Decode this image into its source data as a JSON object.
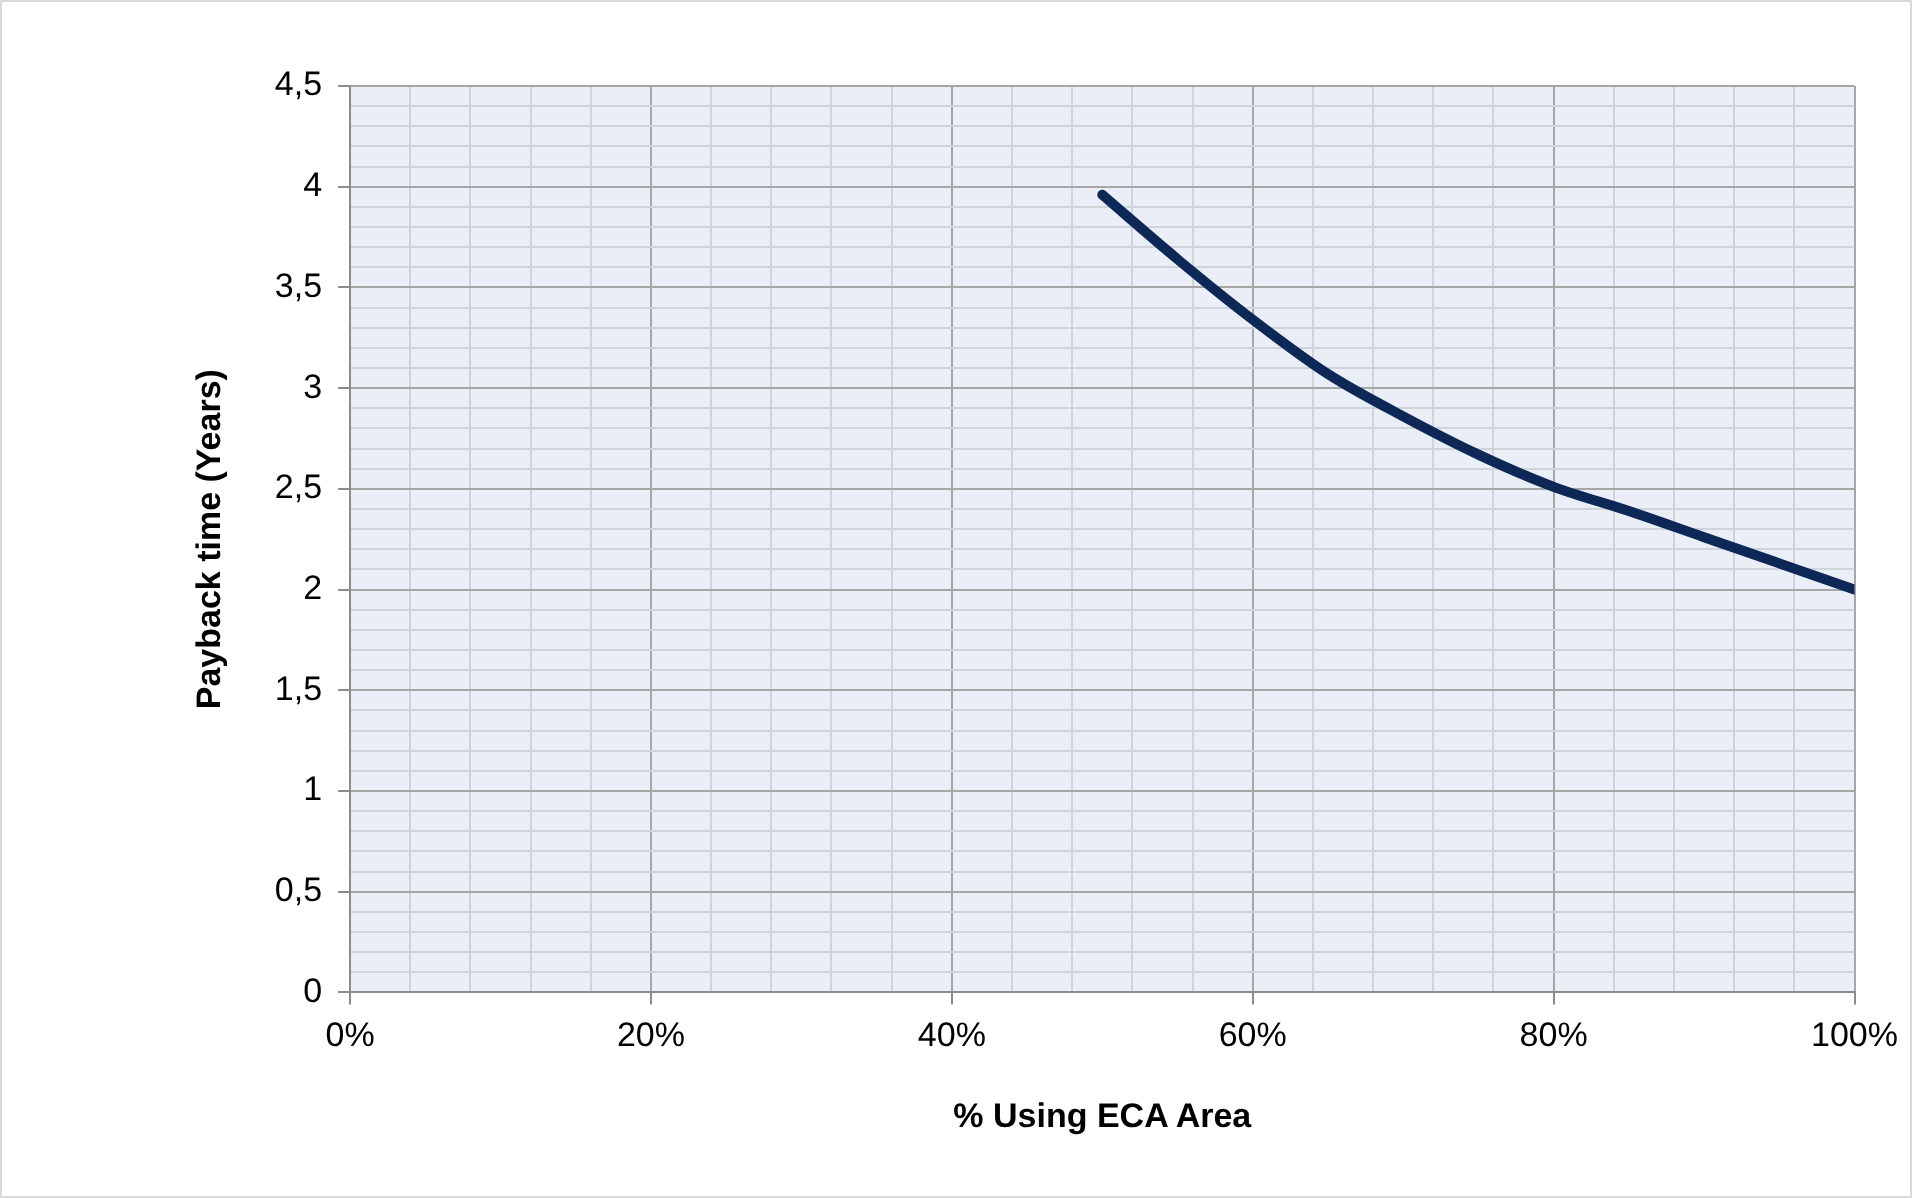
{
  "chart_data": {
    "type": "line",
    "xlabel": "% Using ECA Area",
    "ylabel": "Payback time (Years)",
    "x": [
      50,
      55,
      60,
      65,
      70,
      75,
      80,
      85,
      90,
      95,
      100
    ],
    "series": [
      {
        "color": "#0d2857",
        "values": [
          3.96,
          3.64,
          3.34,
          3.07,
          2.86,
          2.67,
          2.51,
          2.39,
          2.26,
          2.13,
          2.0
        ]
      }
    ],
    "xlim": [
      0,
      100
    ],
    "xticks": [
      {
        "value": 0,
        "label": "0%"
      },
      {
        "value": 4,
        "label": null
      },
      {
        "value": 8,
        "label": null
      },
      {
        "value": 12,
        "label": null
      },
      {
        "value": 16,
        "label": null
      },
      {
        "value": 20,
        "label": "20%"
      },
      {
        "value": 24,
        "label": null
      },
      {
        "value": 28,
        "label": null
      },
      {
        "value": 32,
        "label": null
      },
      {
        "value": 36,
        "label": null
      },
      {
        "value": 40,
        "label": "40%"
      },
      {
        "value": 44,
        "label": null
      },
      {
        "value": 48,
        "label": null
      },
      {
        "value": 52,
        "label": null
      },
      {
        "value": 56,
        "label": null
      },
      {
        "value": 60,
        "label": "60%"
      },
      {
        "value": 64,
        "label": null
      },
      {
        "value": 68,
        "label": null
      },
      {
        "value": 72,
        "label": null
      },
      {
        "value": 76,
        "label": null
      },
      {
        "value": 80,
        "label": "80%"
      },
      {
        "value": 84,
        "label": null
      },
      {
        "value": 88,
        "label": null
      },
      {
        "value": 92,
        "label": null
      },
      {
        "value": 96,
        "label": null
      },
      {
        "value": 100,
        "label": "100%"
      }
    ],
    "ylim": [
      0,
      4.5
    ],
    "yticks": [
      0,
      {
        "value": 0.1,
        "label": null
      },
      {
        "value": 0.2,
        "label": null
      },
      {
        "value": 0.3,
        "label": null
      },
      {
        "value": 0.4,
        "label": null
      },
      {
        "value": 0.5,
        "label": "0,5"
      },
      {
        "value": 0.6,
        "label": null
      },
      {
        "value": 0.7,
        "label": null
      },
      {
        "value": 0.8,
        "label": null
      },
      {
        "value": 0.9,
        "label": null
      },
      1,
      {
        "value": 1.1,
        "label": null
      },
      {
        "value": 1.2,
        "label": null
      },
      {
        "value": 1.3,
        "label": null
      },
      {
        "value": 1.4,
        "label": null
      },
      {
        "value": 1.5,
        "label": "1,5"
      },
      {
        "value": 1.6,
        "label": null
      },
      {
        "value": 1.7,
        "label": null
      },
      {
        "value": 1.8,
        "label": null
      },
      {
        "value": 1.9,
        "label": null
      },
      2,
      {
        "value": 2.1,
        "label": null
      },
      {
        "value": 2.2,
        "label": null
      },
      {
        "value": 2.3,
        "label": null
      },
      {
        "value": 2.4,
        "label": null
      },
      {
        "value": 2.5,
        "label": "2,5"
      },
      {
        "value": 2.6,
        "label": null
      },
      {
        "value": 2.7,
        "label": null
      },
      {
        "value": 2.8,
        "label": null
      },
      {
        "value": 2.9,
        "label": null
      },
      3,
      {
        "value": 3.1,
        "label": null
      },
      {
        "value": 3.2,
        "label": null
      },
      {
        "value": 3.3,
        "label": null
      },
      {
        "value": 3.4,
        "label": null
      },
      {
        "value": 3.5,
        "label": "3,5"
      },
      {
        "value": 3.6,
        "label": null
      },
      {
        "value": 3.7,
        "label": null
      },
      {
        "value": 3.8,
        "label": null
      },
      {
        "value": 3.9,
        "label": null
      },
      4,
      {
        "value": 4.1,
        "label": null
      },
      {
        "value": 4.2,
        "label": null
      },
      {
        "value": 4.3,
        "label": null
      },
      {
        "value": 4.4,
        "label": null
      },
      {
        "value": 4.5,
        "label": "4,5"
      }
    ],
    "grid": true,
    "legend": false,
    "marker": "none",
    "line_style": "solid"
  }
}
